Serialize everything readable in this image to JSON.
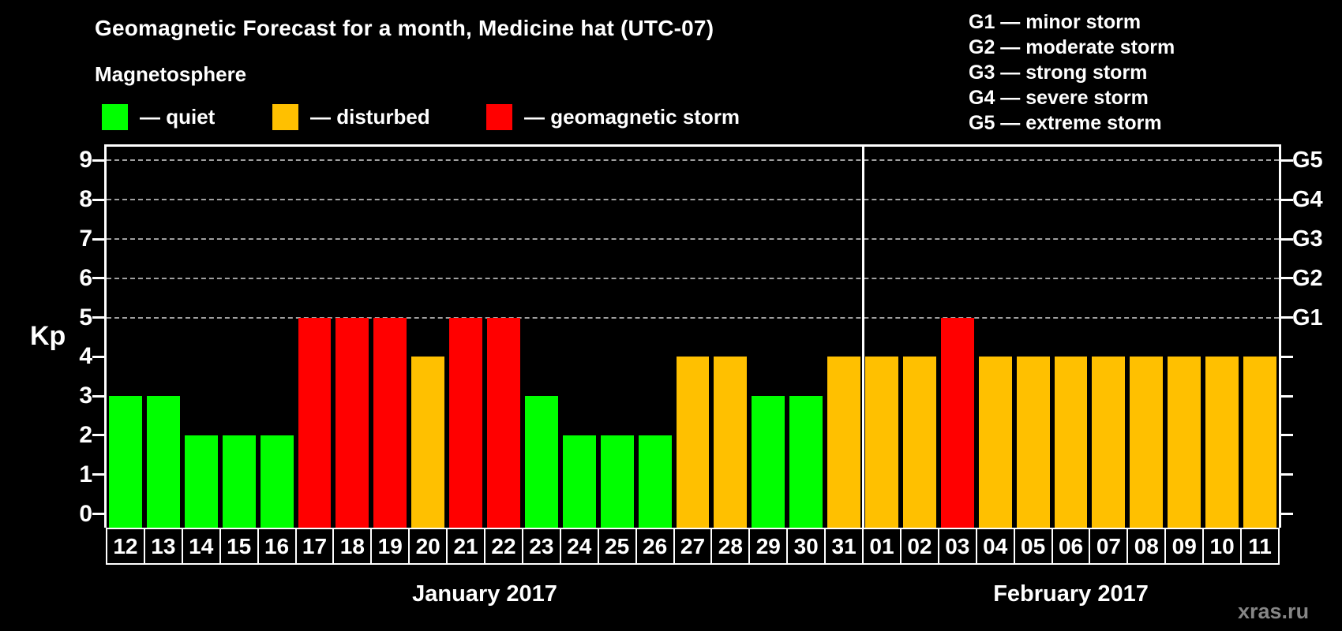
{
  "title": "Geomagnetic Forecast for a month, Medicine hat (UTC-07)",
  "legend": {
    "heading": "Magnetosphere",
    "items": [
      {
        "state": "quiet",
        "label": "— quiet"
      },
      {
        "state": "disturbed",
        "label": "— disturbed"
      },
      {
        "state": "storm",
        "label": "— geomagnetic storm"
      }
    ]
  },
  "g_scale": [
    "G1 — minor storm",
    "G2 — moderate storm",
    "G3 — strong storm",
    "G4 — severe storm",
    "G5 — extreme storm"
  ],
  "watermark": "xras.ru",
  "chart_data": {
    "type": "bar",
    "title": "Geomagnetic Forecast for a month, Medicine hat (UTC-07)",
    "ylabel": "Kp",
    "ylim": [
      0,
      9
    ],
    "y_ticks": [
      0,
      1,
      2,
      3,
      4,
      5,
      6,
      7,
      8,
      9
    ],
    "grid": "dashed horizontal lines at Kp 5-9 only",
    "legend_position": "top",
    "state_colors": {
      "quiet": "#00ff00",
      "disturbed": "#ffc000",
      "storm": "#ff0000"
    },
    "axis_color": "#ffffff",
    "gridline_color": "#a0a0a0",
    "right_axis": [
      {
        "kp": 5,
        "label": "G1"
      },
      {
        "kp": 6,
        "label": "G2"
      },
      {
        "kp": 7,
        "label": "G3"
      },
      {
        "kp": 8,
        "label": "G4"
      },
      {
        "kp": 9,
        "label": "G5"
      }
    ],
    "months": [
      {
        "label": "January 2017",
        "days": [
          {
            "day": "12",
            "kp": 3,
            "state": "quiet"
          },
          {
            "day": "13",
            "kp": 3,
            "state": "quiet"
          },
          {
            "day": "14",
            "kp": 2,
            "state": "quiet"
          },
          {
            "day": "15",
            "kp": 2,
            "state": "quiet"
          },
          {
            "day": "16",
            "kp": 2,
            "state": "quiet"
          },
          {
            "day": "17",
            "kp": 5,
            "state": "storm"
          },
          {
            "day": "18",
            "kp": 5,
            "state": "storm"
          },
          {
            "day": "19",
            "kp": 5,
            "state": "storm"
          },
          {
            "day": "20",
            "kp": 4,
            "state": "disturbed"
          },
          {
            "day": "21",
            "kp": 5,
            "state": "storm"
          },
          {
            "day": "22",
            "kp": 5,
            "state": "storm"
          },
          {
            "day": "23",
            "kp": 3,
            "state": "quiet"
          },
          {
            "day": "24",
            "kp": 2,
            "state": "quiet"
          },
          {
            "day": "25",
            "kp": 2,
            "state": "quiet"
          },
          {
            "day": "26",
            "kp": 2,
            "state": "quiet"
          },
          {
            "day": "27",
            "kp": 4,
            "state": "disturbed"
          },
          {
            "day": "28",
            "kp": 4,
            "state": "disturbed"
          },
          {
            "day": "29",
            "kp": 3,
            "state": "quiet"
          },
          {
            "day": "30",
            "kp": 3,
            "state": "quiet"
          },
          {
            "day": "31",
            "kp": 4,
            "state": "disturbed"
          }
        ]
      },
      {
        "label": "February 2017",
        "days": [
          {
            "day": "01",
            "kp": 4,
            "state": "disturbed"
          },
          {
            "day": "02",
            "kp": 4,
            "state": "disturbed"
          },
          {
            "day": "03",
            "kp": 5,
            "state": "storm"
          },
          {
            "day": "04",
            "kp": 4,
            "state": "disturbed"
          },
          {
            "day": "05",
            "kp": 4,
            "state": "disturbed"
          },
          {
            "day": "06",
            "kp": 4,
            "state": "disturbed"
          },
          {
            "day": "07",
            "kp": 4,
            "state": "disturbed"
          },
          {
            "day": "08",
            "kp": 4,
            "state": "disturbed"
          },
          {
            "day": "09",
            "kp": 4,
            "state": "disturbed"
          },
          {
            "day": "10",
            "kp": 4,
            "state": "disturbed"
          },
          {
            "day": "11",
            "kp": 4,
            "state": "disturbed"
          }
        ]
      }
    ]
  }
}
